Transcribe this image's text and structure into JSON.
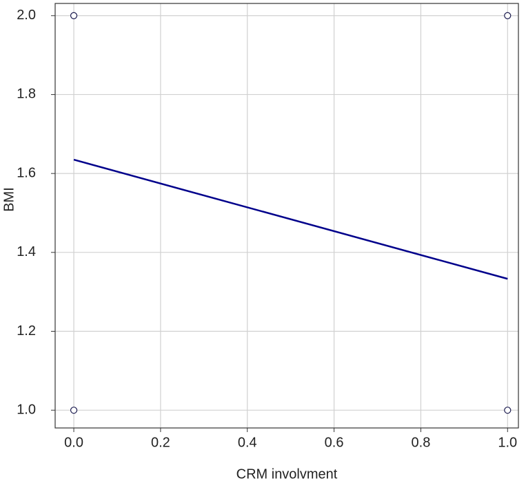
{
  "chart_data": {
    "type": "scatter",
    "xlabel": "CRM involvment",
    "ylabel": "BMI",
    "points": {
      "x": [
        0,
        0,
        1,
        1
      ],
      "y": [
        2,
        1,
        2,
        1
      ],
      "color": "#1a1a4e"
    },
    "fit_line": {
      "x": [
        0,
        1
      ],
      "y": [
        1.635,
        1.333
      ],
      "color": "#00008b"
    },
    "xlim": [
      -0.043,
      1.025
    ],
    "ylim": [
      0.955,
      2.031
    ],
    "xticks": [
      {
        "value": 0,
        "label": "0.0"
      },
      {
        "value": 0.2,
        "label": "0.2"
      },
      {
        "value": 0.4,
        "label": "0.4"
      },
      {
        "value": 0.6,
        "label": "0.6"
      },
      {
        "value": 0.8,
        "label": "0.8"
      },
      {
        "value": 1,
        "label": "1.0"
      }
    ],
    "yticks": [
      {
        "value": 1,
        "label": "1.0"
      },
      {
        "value": 1.2,
        "label": "1.2"
      },
      {
        "value": 1.4,
        "label": "1.4"
      },
      {
        "value": 1.6,
        "label": "1.6"
      },
      {
        "value": 1.8,
        "label": "1.8"
      },
      {
        "value": 2,
        "label": "2.0"
      }
    ],
    "grid": true
  }
}
